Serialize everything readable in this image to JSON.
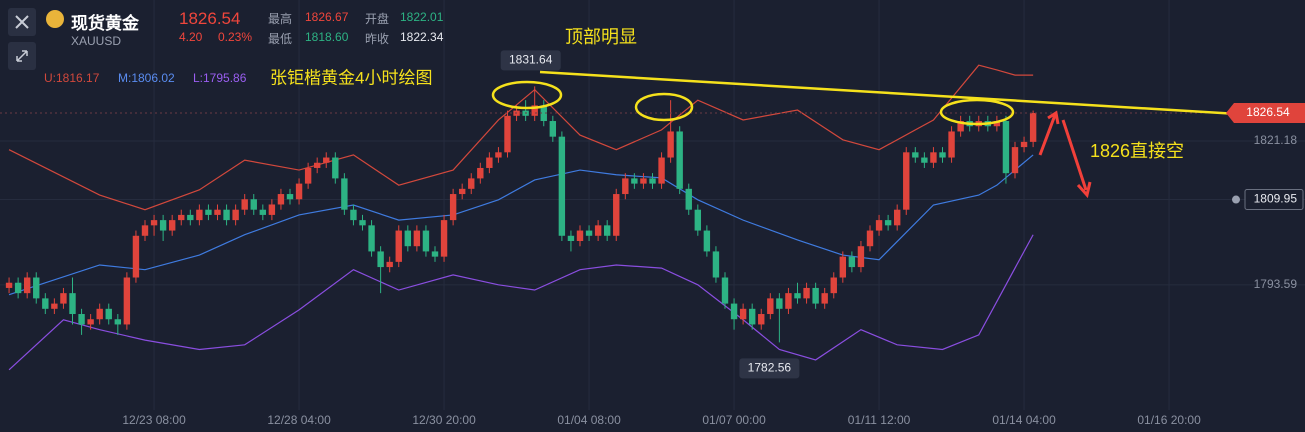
{
  "header": {
    "name": "现货黄金",
    "symbol": "XAUUSD",
    "price": "1826.54",
    "change": "4.20",
    "change_pct": "0.23%",
    "stats": [
      {
        "label": "最高",
        "value": "1826.67"
      },
      {
        "label": "开盘",
        "value": "1822.01"
      },
      {
        "label": "最低",
        "value": "1818.60"
      },
      {
        "label": "昨收",
        "value": "1822.34"
      }
    ]
  },
  "chart_data": {
    "type": "candlestick",
    "annotations": [
      "张钜楷黄金4小时绘图",
      "顶部明显",
      "1826直接空"
    ],
    "xlim": [
      -1,
      143
    ],
    "xticks": [
      {
        "value": 16,
        "label": "12/23 08:00"
      },
      {
        "value": 32,
        "label": "12/28 04:00"
      },
      {
        "value": 48,
        "label": "12/30 20:00"
      },
      {
        "value": 64,
        "label": "01/04 08:00"
      },
      {
        "value": 80,
        "label": "01/07 00:00"
      },
      {
        "value": 96,
        "label": "01/11 12:00"
      },
      {
        "value": 112,
        "label": "01/14 04:00"
      },
      {
        "value": 128,
        "label": "01/16 20:00"
      }
    ],
    "ylim": [
      1769.6,
      1848.2
    ],
    "yticks": [
      1793.59,
      1809.95,
      1821.18
    ],
    "up_color": "#e0443c",
    "down_color": "#2db384",
    "grid": true,
    "open": [
      1793,
      1794,
      1792,
      1795,
      1791,
      1789,
      1790,
      1792,
      1788,
      1786,
      1787,
      1789,
      1787,
      1786,
      1795,
      1803,
      1805,
      1806,
      1804,
      1806,
      1807,
      1806,
      1808,
      1807,
      1808,
      1806,
      1808,
      1810,
      1808,
      1807,
      1809,
      1811,
      1810,
      1813,
      1816,
      1817,
      1818,
      1814,
      1808,
      1806,
      1805,
      1800,
      1797,
      1798,
      1804,
      1801,
      1804,
      1800,
      1799,
      1806,
      1811,
      1812,
      1814,
      1816,
      1818,
      1819,
      1826,
      1827,
      1826,
      1828,
      1825,
      1822,
      1803,
      1802,
      1804,
      1803,
      1805,
      1803,
      1811,
      1814,
      1813,
      1814,
      1813,
      1818,
      1823,
      1812,
      1808,
      1804,
      1800,
      1795,
      1790,
      1787,
      1789,
      1786,
      1788,
      1791,
      1789,
      1792,
      1791,
      1793,
      1790,
      1792,
      1795,
      1799,
      1797,
      1801,
      1804,
      1806,
      1805,
      1808,
      1819,
      1818,
      1817,
      1819,
      1818,
      1823,
      1825,
      1824,
      1825,
      1824,
      1825,
      1815,
      1820,
      1821
    ],
    "high": [
      1795,
      1795,
      1796,
      1796,
      1792,
      1791,
      1793,
      1795,
      1789,
      1788,
      1790,
      1790,
      1788,
      1796,
      1804,
      1806,
      1807,
      1807,
      1807,
      1808,
      1808,
      1809,
      1809,
      1809,
      1809,
      1809,
      1811,
      1811,
      1809,
      1810,
      1812,
      1812,
      1814,
      1817,
      1818,
      1819,
      1819,
      1815,
      1809,
      1807,
      1806,
      1801,
      1799,
      1805,
      1805,
      1805,
      1805,
      1801,
      1807,
      1812,
      1813,
      1815,
      1817,
      1819,
      1820,
      1827,
      1828,
      1829,
      1831.64,
      1829,
      1826,
      1823,
      1804,
      1805,
      1805,
      1806,
      1806,
      1812,
      1815,
      1815,
      1815,
      1815,
      1819,
      1829,
      1824,
      1813,
      1809,
      1805,
      1801,
      1796,
      1791,
      1790,
      1790,
      1789,
      1792,
      1792,
      1793,
      1794,
      1794,
      1794,
      1793,
      1796,
      1800,
      1800,
      1802,
      1805,
      1807,
      1807,
      1809,
      1820,
      1820,
      1819,
      1820,
      1820,
      1824,
      1826,
      1826,
      1826,
      1826,
      1826,
      1826,
      1821,
      1822,
      1827
    ],
    "low": [
      1792,
      1791,
      1791,
      1790,
      1788,
      1788,
      1789,
      1786,
      1784,
      1785,
      1786,
      1786,
      1784,
      1785,
      1794,
      1802,
      1803,
      1802,
      1803,
      1805,
      1805,
      1805,
      1806,
      1806,
      1805,
      1805,
      1807,
      1807,
      1806,
      1806,
      1808,
      1809,
      1809,
      1812,
      1815,
      1816,
      1813,
      1807,
      1805,
      1804,
      1799,
      1792,
      1796,
      1797,
      1800,
      1800,
      1799,
      1798,
      1798,
      1805,
      1810,
      1811,
      1813,
      1815,
      1817,
      1818,
      1825,
      1825,
      1825,
      1824,
      1821,
      1802,
      1800,
      1801,
      1802,
      1802,
      1802,
      1802,
      1810,
      1812,
      1812,
      1812,
      1812,
      1817,
      1811,
      1807,
      1803,
      1799,
      1794,
      1789,
      1785,
      1786,
      1785,
      1785,
      1787,
      1782.56,
      1788,
      1790,
      1790,
      1789,
      1789,
      1791,
      1794,
      1796,
      1796,
      1800,
      1803,
      1804,
      1804,
      1807,
      1817,
      1816,
      1816,
      1817,
      1817,
      1822,
      1823,
      1823,
      1823,
      1823,
      1813,
      1814,
      1819,
      1820
    ],
    "close": [
      1794,
      1792,
      1795,
      1791,
      1789,
      1790,
      1792,
      1788,
      1786,
      1787,
      1789,
      1787,
      1786,
      1795,
      1803,
      1805,
      1806,
      1804,
      1806,
      1807,
      1806,
      1808,
      1807,
      1808,
      1806,
      1808,
      1810,
      1808,
      1807,
      1809,
      1811,
      1810,
      1813,
      1816,
      1817,
      1818,
      1814,
      1808,
      1806,
      1805,
      1800,
      1797,
      1798,
      1804,
      1801,
      1804,
      1800,
      1799,
      1806,
      1811,
      1812,
      1814,
      1816,
      1818,
      1819,
      1826,
      1827,
      1826,
      1828,
      1825,
      1822,
      1803,
      1802,
      1804,
      1803,
      1805,
      1803,
      1811,
      1814,
      1813,
      1814,
      1813,
      1818,
      1823,
      1812,
      1808,
      1804,
      1800,
      1795,
      1790,
      1787,
      1789,
      1786,
      1788,
      1791,
      1789,
      1792,
      1791,
      1793,
      1790,
      1792,
      1795,
      1799,
      1797,
      1801,
      1804,
      1806,
      1805,
      1808,
      1819,
      1818,
      1817,
      1819,
      1818,
      1823,
      1825,
      1824,
      1825,
      1824,
      1825,
      1815,
      1820,
      1821,
      1826.54
    ],
    "series": [
      {
        "name": "U:1816.17",
        "color": "#d2483c",
        "x": [
          0,
          10,
          15,
          21,
          26,
          32,
          38,
          43,
          49,
          54,
          58,
          63,
          67,
          72,
          76,
          81,
          87,
          92,
          96,
          102,
          107,
          109,
          111,
          113
        ],
        "values": [
          1819.5,
          1810.8,
          1808,
          1811.8,
          1817.5,
          1815.6,
          1818.5,
          1812.7,
          1815.6,
          1825.2,
          1831,
          1822.3,
          1819.5,
          1823.3,
          1829,
          1825.2,
          1827.1,
          1821.4,
          1819.5,
          1825.2,
          1835.7,
          1834.8,
          1833.8,
          1833.8
        ]
      },
      {
        "name": "M:1806.02",
        "color": "#3f7be0",
        "x": [
          0,
          10,
          15,
          21,
          26,
          32,
          38,
          43,
          49,
          54,
          58,
          63,
          67,
          72,
          76,
          81,
          87,
          92,
          96,
          102,
          107,
          109,
          113
        ],
        "values": [
          1791.7,
          1797.4,
          1796.5,
          1799.3,
          1803.2,
          1807,
          1808.9,
          1806,
          1807,
          1809.9,
          1813.7,
          1815.6,
          1814.7,
          1814.1,
          1809.9,
          1806,
          1802.2,
          1799.3,
          1798.4,
          1808.9,
          1810.8,
          1812.7,
          1818.5
        ]
      },
      {
        "name": "L:1795.86",
        "color": "#8a4ee0",
        "x": [
          0,
          6,
          10,
          15,
          21,
          26,
          32,
          38,
          43,
          49,
          54,
          58,
          63,
          67,
          72,
          76,
          81,
          85,
          89,
          94,
          98,
          103,
          107,
          113
        ],
        "values": [
          1777.3,
          1786.9,
          1785,
          1783,
          1781.2,
          1782.1,
          1788.8,
          1796.5,
          1792.6,
          1795.5,
          1793.6,
          1792.6,
          1796.5,
          1797.4,
          1796.8,
          1793.6,
          1786.9,
          1781.2,
          1779.2,
          1785,
          1782.1,
          1781.2,
          1784,
          1803.2
        ]
      }
    ]
  }
}
